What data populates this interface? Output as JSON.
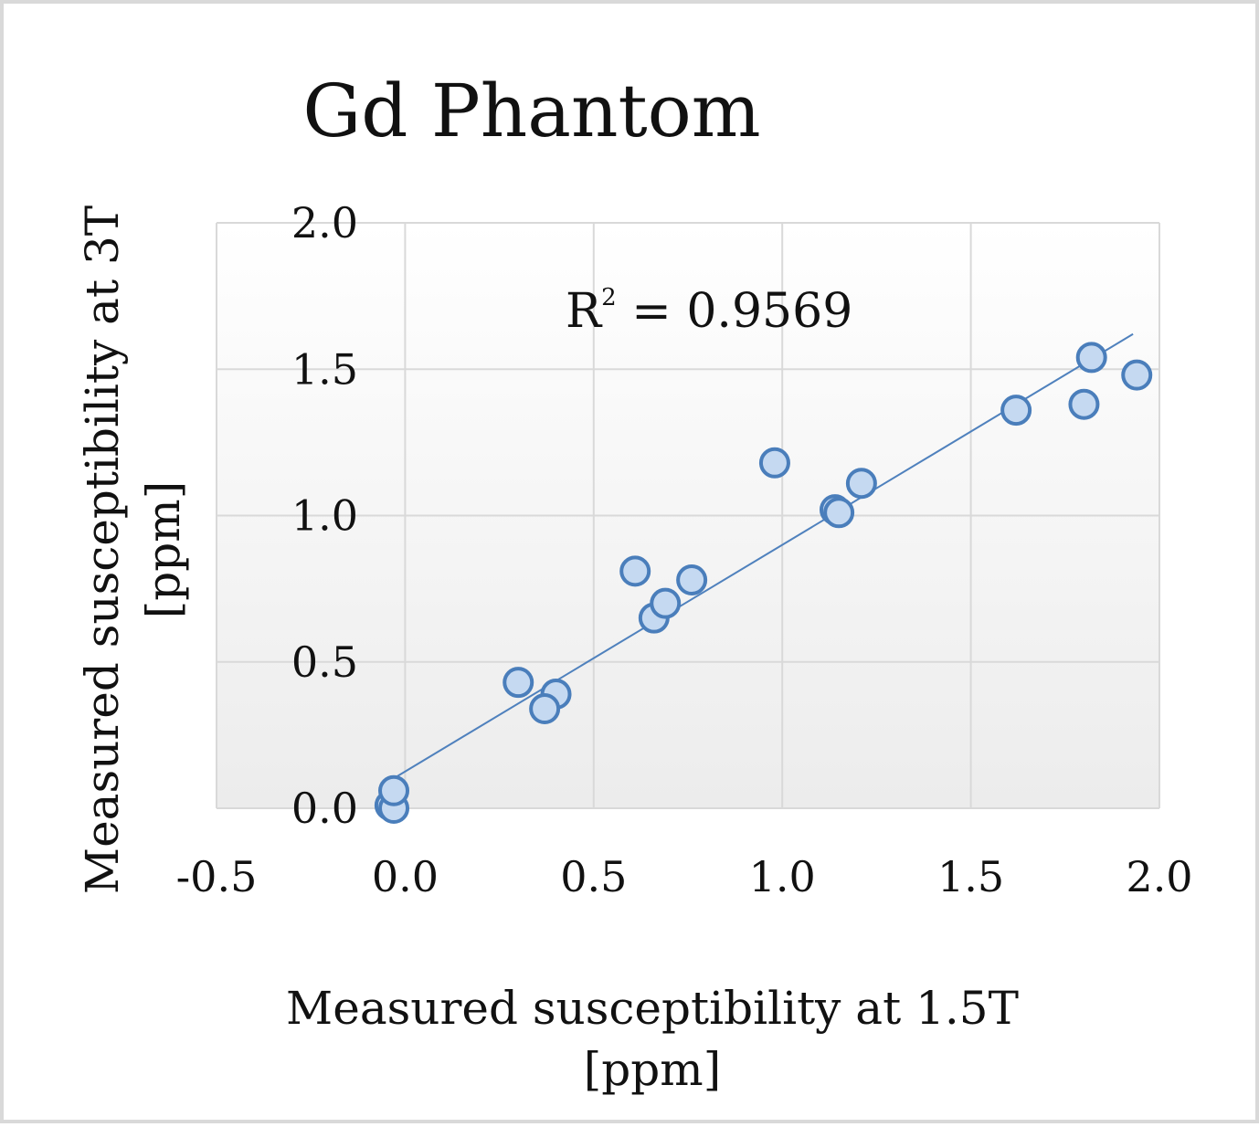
{
  "chart_data": {
    "type": "scatter",
    "title": "Gd Phantom",
    "xlabel_lines": [
      "Measured susceptibility at 1.5T",
      "[ppm]"
    ],
    "ylabel_lines": [
      "Measured susceptibility at 3T",
      "[ppm]"
    ],
    "xlim": [
      -0.5,
      2.0
    ],
    "ylim": [
      0.0,
      2.0
    ],
    "xticks": [
      -0.5,
      0.0,
      0.5,
      1.0,
      1.5,
      2.0
    ],
    "yticks": [
      0.0,
      0.5,
      1.0,
      1.5,
      2.0
    ],
    "xtick_labels": [
      "-0.5",
      "0.0",
      "0.5",
      "1.0",
      "1.5",
      "2.0"
    ],
    "ytick_labels": [
      "0.0",
      "0.5",
      "1.0",
      "1.5",
      "2.0"
    ],
    "grid": true,
    "series": [
      {
        "name": "Gd Phantom",
        "points": [
          {
            "x": -0.04,
            "y": 0.01
          },
          {
            "x": -0.03,
            "y": 0.0
          },
          {
            "x": -0.03,
            "y": 0.06
          },
          {
            "x": 0.3,
            "y": 0.43
          },
          {
            "x": 0.4,
            "y": 0.39
          },
          {
            "x": 0.37,
            "y": 0.34
          },
          {
            "x": 0.61,
            "y": 0.81
          },
          {
            "x": 0.66,
            "y": 0.65
          },
          {
            "x": 0.69,
            "y": 0.7
          },
          {
            "x": 0.76,
            "y": 0.78
          },
          {
            "x": 0.98,
            "y": 1.18
          },
          {
            "x": 1.14,
            "y": 1.02
          },
          {
            "x": 1.15,
            "y": 1.01
          },
          {
            "x": 1.21,
            "y": 1.11
          },
          {
            "x": 1.62,
            "y": 1.36
          },
          {
            "x": 1.8,
            "y": 1.38
          },
          {
            "x": 1.82,
            "y": 1.54
          },
          {
            "x": 1.94,
            "y": 1.48
          }
        ]
      }
    ],
    "trendline": {
      "type": "linear",
      "x_start": -0.02,
      "y_start": 0.11,
      "x_end": 1.93,
      "y_end": 1.62,
      "label_base": "R",
      "label_sup": "2",
      "label_rest": " = 0.9569"
    }
  }
}
